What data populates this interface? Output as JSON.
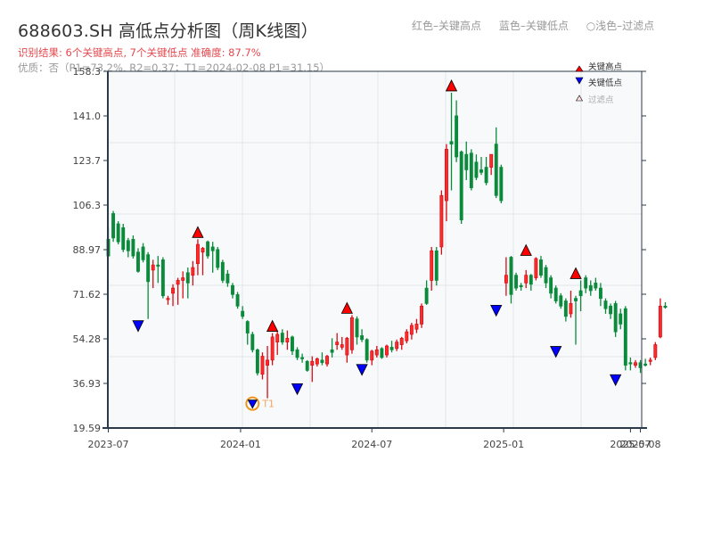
{
  "header": {
    "title": "688603.SH 高低点分析图（周K线图）",
    "result": "识别结果: 6个关键高点, 7个关键低点  准确度: 87.7%",
    "quality": "优质：否（P1=73.2%, R2=0.37；T1=2024-02-08 P1=31.15）"
  },
  "top_legend": {
    "red": "红色–关键高点",
    "blue": "蓝色–关键低点",
    "light": "○浅色–过滤点"
  },
  "colors": {
    "up": "#d40e14",
    "down": "#0a8a3a",
    "high_marker": "#ff0000",
    "low_marker": "#0000ff",
    "t1_ring": "#f0961e",
    "axis": "#2b3a4a",
    "grid": "#e3e6ea",
    "plot_bg": "#f7f9fb"
  },
  "chart_data": {
    "type": "candlestick",
    "title": "688603.SH 高低点分析图（周K线图）",
    "xlabel": "",
    "ylabel": "",
    "ylim": [
      19.59,
      158.3
    ],
    "y_ticks": [
      "19.59",
      "36.93",
      "54.28",
      "71.62",
      "88.97",
      "106.3",
      "123.7",
      "141.0",
      "158.3"
    ],
    "x_ticks": [
      {
        "label": "2023-07",
        "week": 0
      },
      {
        "label": "2024-01",
        "week": 26.6
      },
      {
        "label": "2024-07",
        "week": 53
      },
      {
        "label": "2025-01",
        "week": 79.5
      },
      {
        "label": "2025-07",
        "week": 105
      },
      {
        "label": "2025-08",
        "week": 107
      }
    ],
    "grid": true,
    "legend": {
      "position": "upper right",
      "entries": [
        "关键高点",
        "关键低点",
        "过滤点"
      ]
    },
    "candles": [
      [
        93.0,
        97.5,
        86.0,
        86.5
      ],
      [
        103.0,
        104.0,
        92.0,
        93.5
      ],
      [
        99.0,
        100.0,
        91.0,
        92.0
      ],
      [
        97.5,
        99.0,
        88.0,
        89.0
      ],
      [
        92.5,
        93.5,
        86.0,
        88.5
      ],
      [
        93.0,
        94.5,
        85.5,
        86.5
      ],
      [
        88.0,
        89.5,
        80.0,
        80.5
      ],
      [
        90.0,
        91.5,
        84.0,
        85.0
      ],
      [
        87.0,
        88.0,
        62.0,
        76.5
      ],
      [
        81.0,
        85.0,
        74.0,
        83.0
      ],
      [
        83.0,
        86.5,
        76.0,
        82.5
      ],
      [
        85.0,
        86.0,
        70.0,
        71.0
      ],
      [
        69.5,
        71.0,
        67.5,
        70.0
      ],
      [
        72.0,
        75.5,
        67.0,
        74.0
      ],
      [
        75.5,
        78.0,
        67.5,
        77.0
      ],
      [
        77.0,
        80.5,
        70.0,
        78.0
      ],
      [
        80.0,
        82.0,
        70.0,
        76.0
      ],
      [
        79.0,
        84.5,
        75.0,
        82.0
      ],
      [
        83.5,
        93.0,
        79.0,
        91.0
      ],
      [
        88.0,
        90.0,
        79.0,
        89.5
      ],
      [
        92.0,
        92.5,
        85.5,
        86.5
      ],
      [
        90.0,
        92.0,
        80.0,
        88.5
      ],
      [
        89.0,
        90.0,
        81.0,
        82.0
      ],
      [
        84.0,
        85.0,
        76.0,
        77.0
      ],
      [
        79.5,
        81.0,
        74.5,
        76.0
      ],
      [
        75.0,
        76.0,
        70.0,
        71.5
      ],
      [
        71.5,
        72.5,
        66.0,
        67.0
      ],
      [
        65.0,
        67.0,
        62.0,
        63.0
      ],
      [
        61.0,
        61.5,
        52.0,
        56.5
      ],
      [
        56.0,
        57.0,
        49.0,
        50.0
      ],
      [
        50.0,
        50.5,
        40.0,
        41.0
      ],
      [
        40.5,
        49.0,
        38.5,
        47.5
      ],
      [
        44.0,
        51.5,
        31.15,
        46.0
      ],
      [
        46.0,
        56.5,
        44.0,
        55.0
      ],
      [
        53.0,
        57.0,
        48.0,
        56.0
      ],
      [
        56.5,
        58.0,
        52.0,
        53.0
      ],
      [
        53.0,
        57.5,
        50.0,
        54.5
      ],
      [
        55.0,
        55.5,
        48.0,
        49.5
      ],
      [
        50.0,
        51.0,
        46.0,
        47.0
      ],
      [
        47.0,
        48.5,
        45.0,
        46.5
      ],
      [
        45.5,
        46.0,
        41.5,
        42.0
      ],
      [
        44.0,
        47.5,
        37.5,
        45.5
      ],
      [
        44.5,
        47.0,
        43.5,
        46.5
      ],
      [
        46.0,
        49.0,
        44.0,
        45.0
      ],
      [
        44.5,
        48.0,
        43.5,
        47.5
      ],
      [
        50.0,
        54.5,
        47.0,
        49.0
      ],
      [
        52.0,
        56.5,
        50.0,
        53.0
      ],
      [
        51.0,
        55.0,
        50.0,
        52.0
      ],
      [
        48.0,
        55.0,
        45.0,
        54.5
      ],
      [
        50.0,
        63.5,
        48.5,
        62.5
      ],
      [
        62.0,
        63.0,
        52.0,
        55.0
      ],
      [
        55.5,
        58.0,
        53.0,
        54.0
      ],
      [
        54.0,
        54.5,
        45.0,
        46.0
      ],
      [
        46.0,
        50.0,
        44.0,
        49.5
      ],
      [
        48.0,
        51.5,
        47.0,
        50.0
      ],
      [
        50.5,
        51.0,
        46.5,
        47.0
      ],
      [
        48.0,
        52.0,
        47.0,
        51.5
      ],
      [
        51.0,
        53.5,
        49.0,
        50.0
      ],
      [
        50.5,
        54.0,
        49.5,
        53.0
      ],
      [
        52.0,
        55.0,
        50.0,
        54.5
      ],
      [
        53.5,
        58.0,
        52.5,
        57.0
      ],
      [
        56.0,
        60.5,
        54.0,
        59.5
      ],
      [
        58.0,
        62.0,
        56.5,
        60.0
      ],
      [
        60.0,
        68.0,
        58.5,
        67.0
      ],
      [
        74.0,
        77.0,
        67.5,
        68.0
      ],
      [
        77.0,
        90.0,
        73.0,
        88.5
      ],
      [
        88.5,
        90.0,
        75.0,
        77.0
      ],
      [
        90.0,
        112.0,
        87.0,
        110.0
      ],
      [
        108.0,
        130.0,
        100.0,
        128.0
      ],
      [
        131.0,
        150.0,
        112.0,
        130.0
      ],
      [
        141.0,
        147.0,
        123.0,
        125.0
      ],
      [
        127.0,
        127.5,
        99.0,
        100.5
      ],
      [
        126.0,
        131.0,
        116.0,
        120.0
      ],
      [
        126.5,
        128.0,
        112.0,
        113.0
      ],
      [
        123.0,
        126.0,
        116.0,
        117.0
      ],
      [
        120.0,
        125.0,
        118.0,
        119.0
      ],
      [
        121.0,
        125.0,
        114.0,
        115.0
      ],
      [
        121.0,
        126.0,
        118.0,
        126.0
      ],
      [
        130.0,
        136.5,
        109.0,
        110.0
      ],
      [
        121.0,
        122.0,
        107.0,
        108.0
      ],
      [
        76.0,
        86.0,
        71.0,
        79.0
      ],
      [
        86.0,
        86.5,
        68.0,
        71.5
      ],
      [
        79.0,
        80.0,
        73.0,
        74.0
      ],
      [
        75.0,
        76.0,
        73.0,
        74.5
      ],
      [
        76.0,
        81.0,
        74.0,
        79.0
      ],
      [
        79.0,
        79.5,
        73.0,
        75.5
      ],
      [
        78.0,
        86.0,
        77.0,
        85.5
      ],
      [
        85.0,
        86.5,
        78.0,
        79.0
      ],
      [
        82.0,
        83.0,
        74.0,
        76.0
      ],
      [
        78.0,
        79.0,
        70.0,
        72.0
      ],
      [
        74.0,
        75.0,
        68.0,
        69.0
      ],
      [
        71.0,
        72.0,
        66.0,
        67.0
      ],
      [
        69.0,
        70.0,
        61.0,
        63.0
      ],
      [
        64.0,
        73.0,
        62.5,
        68.0
      ],
      [
        70.0,
        71.0,
        52.0,
        69.0
      ],
      [
        73.0,
        77.0,
        65.0,
        71.0
      ],
      [
        78.0,
        79.0,
        72.0,
        74.0
      ],
      [
        75.0,
        77.0,
        71.0,
        73.0
      ],
      [
        76.0,
        78.0,
        73.0,
        74.0
      ],
      [
        74.0,
        76.0,
        67.0,
        70.0
      ],
      [
        69.0,
        70.0,
        64.0,
        66.0
      ],
      [
        67.0,
        68.0,
        62.0,
        64.0
      ],
      [
        68.0,
        69.0,
        55.0,
        57.0
      ],
      [
        64.0,
        66.0,
        58.0,
        60.0
      ],
      [
        66.0,
        67.0,
        42.0,
        44.0
      ],
      [
        45.0,
        47.0,
        42.0,
        44.5
      ],
      [
        44.0,
        46.0,
        43.0,
        45.0
      ],
      [
        45.0,
        46.0,
        41.0,
        43.0
      ],
      [
        44.5,
        46.5,
        43.5,
        44.0
      ],
      [
        45.5,
        47.0,
        44.0,
        46.0
      ],
      [
        47.0,
        53.0,
        46.0,
        52.0
      ],
      [
        55.0,
        70.0,
        54.5,
        67.0
      ],
      [
        67.0,
        68.5,
        66.0,
        66.5
      ]
    ],
    "key_highs": [
      {
        "week": 18,
        "price": 93.0
      },
      {
        "week": 33,
        "price": 56.5
      },
      {
        "week": 48,
        "price": 63.5
      },
      {
        "week": 69,
        "price": 150.0
      },
      {
        "week": 84,
        "price": 86.0
      },
      {
        "week": 94,
        "price": 77.0
      }
    ],
    "key_lows": [
      {
        "week": 6,
        "price": 62.0
      },
      {
        "week": 29,
        "price": 31.15,
        "annotation": "T1"
      },
      {
        "week": 38,
        "price": 37.5
      },
      {
        "week": 51,
        "price": 45.0
      },
      {
        "week": 78,
        "price": 68.0
      },
      {
        "week": 90,
        "price": 52.0
      },
      {
        "week": 102,
        "price": 41.0
      }
    ],
    "t1": {
      "label": "T1",
      "date": "2024-02-08",
      "price": 31.15
    }
  },
  "legend": {
    "high": "关键高点",
    "low": "关键低点",
    "filtered": "过滤点"
  }
}
